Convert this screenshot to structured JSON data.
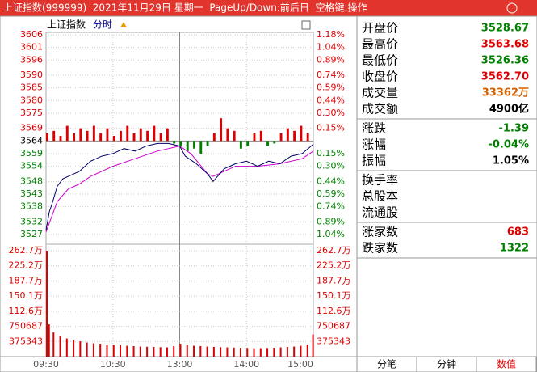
{
  "window": {
    "title": "上证指数(999999)  2021年11月29日 星期一  PageUp/Down:前后日  空格键:操作"
  },
  "chart_header": {
    "name": "上证指数",
    "mode": "分时"
  },
  "chart_data": {
    "type": "intraday",
    "x_labels": [
      {
        "value": 0,
        "label": "09:30"
      },
      {
        "value": 60,
        "label": "10:30"
      },
      {
        "value": 120,
        "label": "13:00"
      },
      {
        "value": 180,
        "label": "14:00"
      },
      {
        "value": 240,
        "label": "15:00"
      }
    ],
    "xlim": [
      0,
      240
    ],
    "ylim": [
      3527,
      3606
    ],
    "base": 3564,
    "yticks": [
      3606,
      3601,
      3596,
      3590,
      3585,
      3580,
      3575,
      3569,
      3564,
      3559,
      3554,
      3548,
      3543,
      3538,
      3532,
      3527
    ],
    "y_pct_labels": [
      "1.18%",
      "1.04%",
      "0.89%",
      "0.74%",
      "0.59%",
      "0.44%",
      "0.30%",
      "0.15%",
      null,
      "0.15%",
      "0.30%",
      "0.44%",
      "0.59%",
      "0.74%",
      "0.89%",
      "1.04%"
    ],
    "price": {
      "color": "#000066",
      "x": [
        0,
        3,
        6,
        10,
        15,
        20,
        30,
        40,
        50,
        60,
        70,
        80,
        90,
        100,
        110,
        120,
        125,
        135,
        145,
        150,
        160,
        170,
        180,
        190,
        200,
        210,
        220,
        230,
        240
      ],
      "values": [
        3528.7,
        3536,
        3540,
        3546,
        3549,
        3550,
        3552,
        3556,
        3558,
        3559,
        3561,
        3560,
        3562,
        3563,
        3563,
        3562,
        3558,
        3555,
        3551,
        3548,
        3553,
        3555,
        3556,
        3554,
        3556,
        3555,
        3558,
        3559,
        3562.7
      ]
    },
    "avg": {
      "color": "#cc00cc",
      "x": [
        0,
        10,
        20,
        30,
        40,
        60,
        80,
        100,
        120,
        130,
        145,
        150,
        170,
        190,
        210,
        230,
        240
      ],
      "values": [
        3528,
        3540,
        3545,
        3547,
        3550,
        3554,
        3557,
        3560,
        3562,
        3559,
        3551,
        3550,
        3554,
        3554,
        3555,
        3557,
        3560
      ]
    },
    "breadth": {
      "up_color": "#dd0000",
      "down_color": "#008000",
      "x": [
        0,
        6,
        12,
        18,
        24,
        30,
        36,
        42,
        48,
        54,
        60,
        66,
        72,
        78,
        84,
        90,
        96,
        102,
        108,
        114,
        120,
        126,
        132,
        138,
        144,
        150,
        156,
        162,
        168,
        174,
        180,
        186,
        192,
        198,
        204,
        210,
        216,
        222,
        228,
        234
      ],
      "values": [
        3,
        4,
        2,
        6,
        3,
        5,
        4,
        6,
        3,
        5,
        2,
        4,
        6,
        3,
        5,
        4,
        6,
        3,
        5,
        -1,
        -2,
        -4,
        -3,
        -5,
        -2,
        3,
        9,
        5,
        4,
        -3,
        -2,
        3,
        4,
        -2,
        -1,
        3,
        5,
        4,
        6,
        3
      ]
    },
    "volume": {
      "color": "#dd0000",
      "ylim": [
        0,
        2627000
      ],
      "yticks": [
        {
          "value": 2627000,
          "label": "262.7万"
        },
        {
          "value": 2252000,
          "label": "225.2万"
        },
        {
          "value": 1877000,
          "label": "187.7万"
        },
        {
          "value": 1501000,
          "label": "150.1万"
        },
        {
          "value": 1126000,
          "label": "112.6万"
        },
        {
          "value": 750687,
          "label": "750687"
        },
        {
          "value": 375343,
          "label": "375343"
        }
      ],
      "x": [
        0,
        2,
        6,
        12,
        18,
        24,
        30,
        36,
        42,
        48,
        54,
        60,
        66,
        72,
        78,
        84,
        90,
        96,
        102,
        108,
        114,
        120,
        126,
        132,
        138,
        144,
        150,
        156,
        162,
        168,
        174,
        180,
        186,
        192,
        198,
        204,
        210,
        216,
        222,
        228,
        234,
        239
      ],
      "values": [
        2627000,
        800000,
        600000,
        500000,
        450000,
        400000,
        380000,
        350000,
        330000,
        320000,
        300000,
        290000,
        280000,
        270000,
        260000,
        250000,
        245000,
        240000,
        235000,
        230000,
        260000,
        320000,
        290000,
        270000,
        260000,
        250000,
        240000,
        235000,
        230000,
        225000,
        220000,
        215000,
        210000,
        210000,
        215000,
        220000,
        230000,
        240000,
        250000,
        270000,
        300000,
        550000
      ]
    }
  },
  "quote_panel": {
    "groups": [
      [
        {
          "label": "开盘价",
          "value": "3528.67",
          "color": "#008000"
        },
        {
          "label": "最高价",
          "value": "3563.68",
          "color": "#dd0000"
        },
        {
          "label": "最低价",
          "value": "3526.36",
          "color": "#008000"
        },
        {
          "label": "收盘价",
          "value": "3562.70",
          "color": "#dd0000"
        },
        {
          "label": "成交量",
          "value": "33362万",
          "color": "#d06000"
        },
        {
          "label": "成交额",
          "value": "4900亿",
          "color": "#000000"
        }
      ],
      [
        {
          "label": "涨跌",
          "value": "-1.39",
          "color": "#008000"
        },
        {
          "label": "涨幅",
          "value": "-0.04%",
          "color": "#008000"
        },
        {
          "label": "振幅",
          "value": "1.05%",
          "color": "#000000"
        }
      ],
      [
        {
          "label": "换手率"
        },
        {
          "label": "总股本"
        },
        {
          "label": "流通股"
        }
      ],
      [
        {
          "label": "涨家数",
          "value": "683",
          "color": "#dd0000"
        },
        {
          "label": "跌家数",
          "value": "1322",
          "color": "#008000"
        }
      ]
    ]
  },
  "tabs": [
    "分笔",
    "分钟",
    "数值"
  ]
}
